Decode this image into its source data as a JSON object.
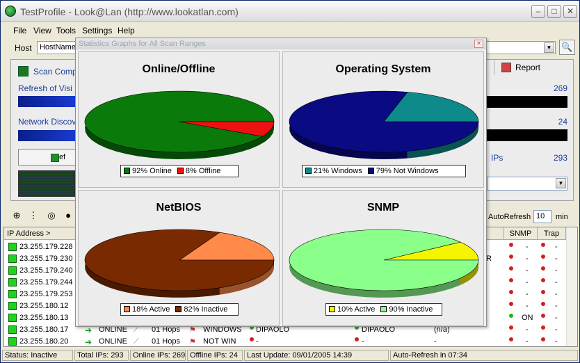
{
  "window": {
    "title": "TestProfile - Look@Lan (http://www.lookatlan.com)"
  },
  "menu": [
    "File",
    "View",
    "Tools",
    "Settings",
    "Help"
  ],
  "hostbar": {
    "label": "Host",
    "field_value": "HostName"
  },
  "top_panel": {
    "scan_label": "Scan Comp",
    "refresh_label": "Refresh of Visi",
    "network_label": "Network Discov",
    "refresh_button": "Ref",
    "report_label": "Report",
    "count_refresh": "269",
    "count_network": "24",
    "ips_label": "IPs",
    "count_ips": "293"
  },
  "toolbar2": {
    "autorefresh_label": "AutoRefresh",
    "autorefresh_value": "10",
    "min_label": "min"
  },
  "table": {
    "headers": {
      "ip": "IP Address  >",
      "snmp": "SNMP",
      "trap": "Trap"
    },
    "rows": [
      {
        "ip": "23.255.179.228",
        "mid": "",
        "snmp": "-",
        "trap": "-"
      },
      {
        "ip": "23.255.179.230",
        "mid": "R",
        "snmp": "-",
        "trap": "-"
      },
      {
        "ip": "23.255.179.240",
        "mid": "",
        "snmp": "-",
        "trap": "-"
      },
      {
        "ip": "23.255.179.244",
        "mid": "",
        "snmp": "-",
        "trap": "-"
      },
      {
        "ip": "23.255.179.253",
        "mid": "",
        "snmp": "-",
        "trap": "-"
      },
      {
        "ip": "23.255.180.12",
        "mid": "",
        "snmp": "-",
        "trap": "-"
      },
      {
        "ip": "23.255.180.13",
        "mid": "",
        "snmp": "ON",
        "trap": "-"
      },
      {
        "ip": "23.255.180.17",
        "state": "ONLINE",
        "hops": "01 Hops",
        "os": "WINDOWS",
        "netbios": "DIPAOLO",
        "name": "DIPAOLO",
        "extra": "(n/a)",
        "snmp": "-",
        "trap": "-"
      },
      {
        "ip": "23.255.180.20",
        "state": "ONLINE",
        "hops": "01 Hops",
        "os": "NOT WIN",
        "netbios": "-",
        "name": "-",
        "extra": "-",
        "snmp": "-",
        "trap": "-"
      }
    ]
  },
  "statusbar": {
    "status": "Status: Inactive",
    "total": "Total IPs: 293",
    "online": "Online IPs: 269",
    "offline": "Offline IPs: 24",
    "last_update": "Last Update: 09/01/2005 14:39",
    "auto_refresh": "Auto-Refresh in 07:34"
  },
  "dialog": {
    "title": "Statistics Graphs for All Scan Ranges",
    "close": "×"
  },
  "chart_data": [
    {
      "type": "pie",
      "title": "Online/Offline",
      "slices": [
        {
          "label": "92% Online",
          "value": 92,
          "color": "#0a7a0a"
        },
        {
          "label": "8% Offline",
          "value": 8,
          "color": "#ee1111"
        }
      ]
    },
    {
      "type": "pie",
      "title": "Operating System",
      "slices": [
        {
          "label": "21% Windows",
          "value": 21,
          "color": "#0f8a8a"
        },
        {
          "label": "79% Not Windows",
          "value": 79,
          "color": "#0a0a82"
        }
      ]
    },
    {
      "type": "pie",
      "title": "NetBIOS",
      "slices": [
        {
          "label": "18% Active",
          "value": 18,
          "color": "#ff8a4a"
        },
        {
          "label": "82% Inactive",
          "value": 82,
          "color": "#7a2a00"
        }
      ]
    },
    {
      "type": "pie",
      "title": "SNMP",
      "slices": [
        {
          "label": "10% Active",
          "value": 10,
          "color": "#f5f500"
        },
        {
          "label": "90% Inactive",
          "value": 90,
          "color": "#8aff8a"
        }
      ]
    }
  ]
}
